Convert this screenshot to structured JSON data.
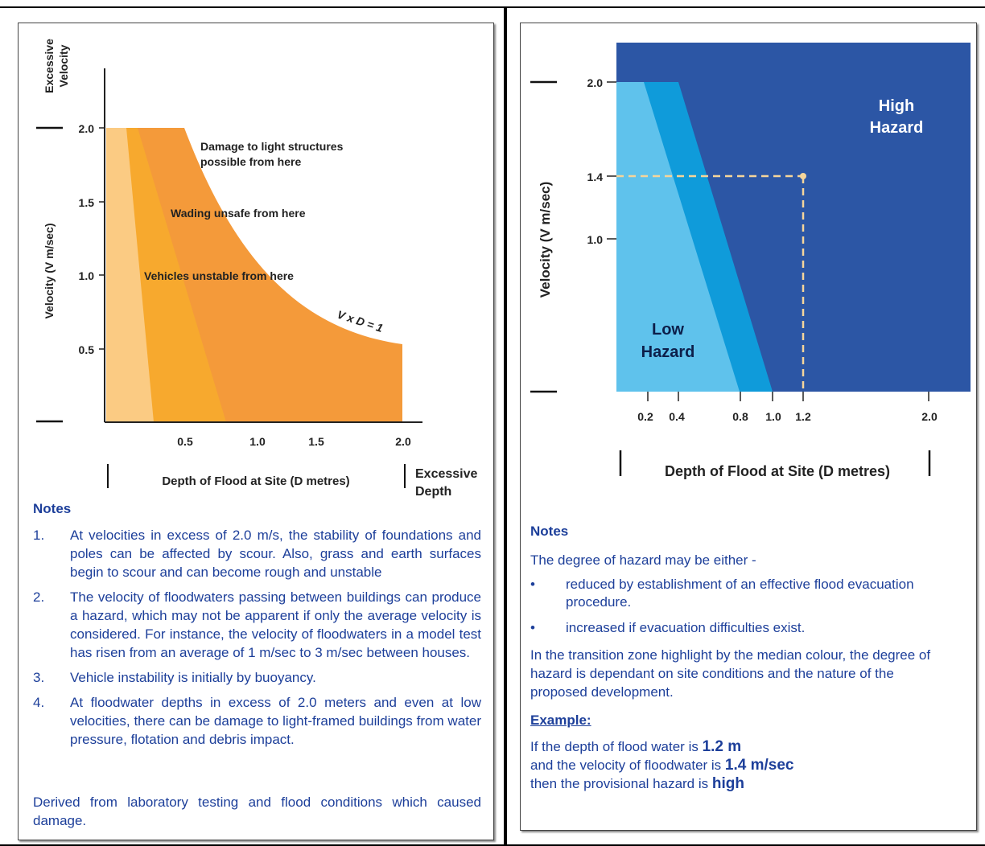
{
  "left_chart": {
    "y_axis_title": "Velocity (V m/sec)",
    "y_excessive_label": [
      "Excessive",
      "Velocity"
    ],
    "x_axis_title": "Depth of Flood at Site (D metres)",
    "x_excessive_label": [
      "Excessive",
      "Depth"
    ],
    "y_ticks": [
      "2.0",
      "1.5",
      "1.0",
      "0.5"
    ],
    "x_ticks": [
      "0.5",
      "1.0",
      "1.5",
      "2.0"
    ],
    "zone_labels": {
      "damage": [
        "Damage to light structures",
        "possible from here"
      ],
      "wading": "Wading unsafe from here",
      "vehicles": "Vehicles unstable from here",
      "curve": "V x D = 1"
    },
    "colors": {
      "zone1": "#fbcb83",
      "zone2": "#f7a92e",
      "zone3": "#f49a3a"
    }
  },
  "left_notes": {
    "title": "Notes",
    "items": [
      {
        "num": "1.",
        "text": "At velocities in excess of 2.0 m/s, the stability of foundations and poles can be affected by scour. Also, grass and earth surfaces begin to scour and can become rough and unstable"
      },
      {
        "num": "2.",
        "text": "The velocity of floodwaters passing between buildings can produce a hazard, which may not be apparent if only the average velocity is considered. For instance, the velocity of floodwaters in a model test has risen from an average of 1 m/sec to 3 m/sec between houses."
      },
      {
        "num": "3.",
        "text": "Vehicle instability is initially by buoyancy."
      },
      {
        "num": "4.",
        "text": "At floodwater depths in excess of 2.0 meters and even at low velocities, there can be damage to light-framed buildings from water pressure, flotation and debris impact."
      }
    ],
    "footer": "Derived from laboratory testing and flood conditions which caused damage."
  },
  "right_chart": {
    "y_axis_title": "Velocity (V m/sec)",
    "x_axis_title": "Depth of Flood at Site (D metres)",
    "y_ticks": [
      "2.0",
      "1.4",
      "1.0"
    ],
    "x_ticks": [
      "0.2",
      "0.4",
      "0.8",
      "1.0",
      "1.2",
      "2.0"
    ],
    "high_label": [
      "High",
      "Hazard"
    ],
    "low_label": [
      "Low",
      "Hazard"
    ],
    "colors": {
      "high": "#2c56a5",
      "mid": "#0f9bda",
      "low": "#5fc2ec",
      "marker": "#f5d59b"
    }
  },
  "right_notes": {
    "title": "Notes",
    "intro": "The degree of hazard may be either -",
    "bullets": [
      "reduced by establishment of an effective flood evacuation procedure.",
      "increased if evacuation difficulties exist."
    ],
    "bullet_glyph": "•",
    "transition": "In the transition zone highlight by the median colour, the degree of hazard is dependant on site conditions and the nature of the proposed development.",
    "example_title": "Example:",
    "example": {
      "line1_pre": "If the depth of flood water is ",
      "line1_val": "1.2 m",
      "line2_pre": "and the velocity of floodwater is ",
      "line2_val": "1.4 m/sec",
      "line3_pre": "then the provisional hazard is ",
      "line3_val": "high"
    }
  }
}
